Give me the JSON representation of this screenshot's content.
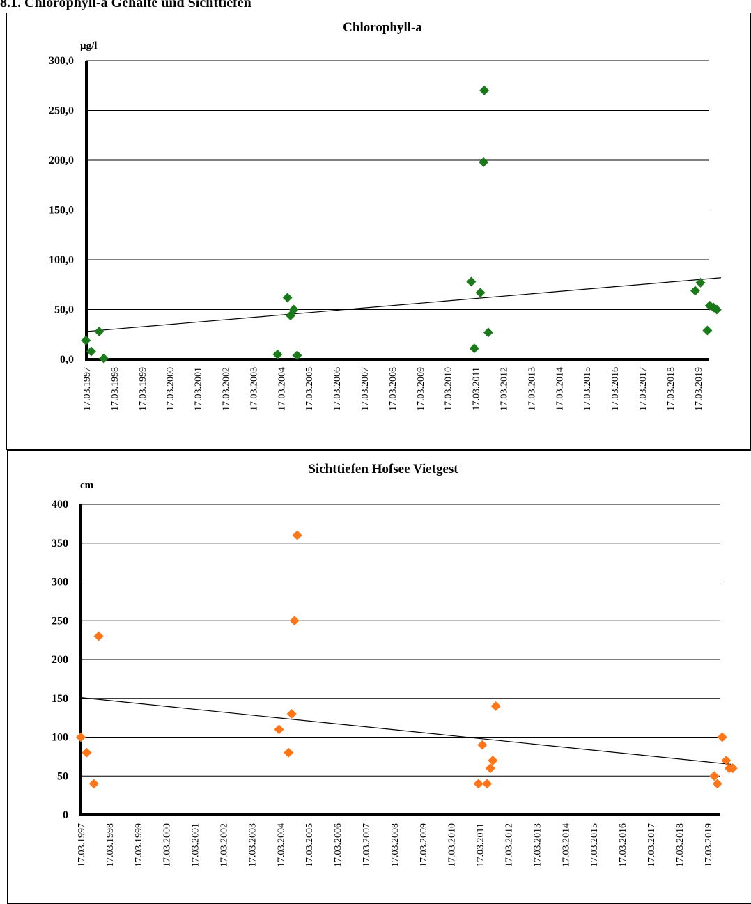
{
  "header": {
    "title": "8.1. Chlorophyll-a Gehalte und Sichttiefen"
  },
  "chart_data": [
    {
      "type": "scatter",
      "title": "Chlorophyll-a",
      "ylabel": "µg/l",
      "ylim": [
        0,
        300
      ],
      "yticks": [
        "0,0",
        "50,0",
        "100,0",
        "150,0",
        "200,0",
        "250,0",
        "300,0"
      ],
      "xticks": [
        "17.03.1997",
        "17.03.1998",
        "17.03.1999",
        "17.03.2000",
        "17.03.2001",
        "17.03.2002",
        "17.03.2003",
        "17.03.2004",
        "17.03.2005",
        "17.03.2006",
        "17.03.2007",
        "17.03.2008",
        "17.03.2009",
        "17.03.2010",
        "17.03.2011",
        "17.03.2012",
        "17.03.2013",
        "17.03.2014",
        "17.03.2015",
        "17.03.2016",
        "17.03.2017",
        "17.03.2018",
        "17.03.2019"
      ],
      "grid": true,
      "marker_color": "#1a7a1a",
      "trendline": {
        "start": [
          "1997-03-17",
          28
        ],
        "end": [
          "2020-01-15",
          82
        ]
      },
      "points": [
        [
          "1997-03-10",
          19
        ],
        [
          "1997-05-20",
          8
        ],
        [
          "1997-09-01",
          28
        ],
        [
          "1997-11-01",
          1
        ],
        [
          "2004-02-01",
          5
        ],
        [
          "2004-06-10",
          62
        ],
        [
          "2004-07-20",
          44
        ],
        [
          "2004-09-01",
          50
        ],
        [
          "2004-10-15",
          4
        ],
        [
          "2011-01-20",
          78
        ],
        [
          "2011-03-01",
          11
        ],
        [
          "2011-05-20",
          67
        ],
        [
          "2011-07-10",
          270
        ],
        [
          "2011-07-01",
          198
        ],
        [
          "2011-09-01",
          27
        ],
        [
          "2019-02-10",
          69
        ],
        [
          "2019-04-20",
          77
        ],
        [
          "2019-07-20",
          29
        ],
        [
          "2019-08-20",
          54
        ],
        [
          "2019-10-10",
          52
        ],
        [
          "2019-11-20",
          50
        ]
      ]
    },
    {
      "type": "scatter",
      "title": "Sichttiefen Hofsee Vietgest",
      "ylabel": "cm",
      "ylim": [
        0,
        400
      ],
      "yticks": [
        "0",
        "50",
        "100",
        "150",
        "200",
        "250",
        "300",
        "350",
        "400"
      ],
      "xticks": [
        "17.03.1997",
        "17.03.1998",
        "17.03.1999",
        "17.03.2000",
        "17.03.2001",
        "17.03.2002",
        "17.03.2003",
        "17.03.2004",
        "17.03.2005",
        "17.03.2006",
        "17.03.2007",
        "17.03.2008",
        "17.03.2009",
        "17.03.2010",
        "17.03.2011",
        "17.03.2012",
        "17.03.2013",
        "17.03.2014",
        "17.03.2015",
        "17.03.2016",
        "17.03.2017",
        "17.03.2018",
        "17.03.2019"
      ],
      "grid": true,
      "marker_color": "#ff7518",
      "trendline": {
        "start": [
          "1997-03-17",
          151
        ],
        "end": [
          "2020-01-15",
          65
        ]
      },
      "points": [
        [
          "1997-03-17",
          100
        ],
        [
          "1997-06-01",
          80
        ],
        [
          "1997-09-01",
          40
        ],
        [
          "1997-11-01",
          230
        ],
        [
          "2004-03-01",
          110
        ],
        [
          "2004-07-01",
          80
        ],
        [
          "2004-08-10",
          130
        ],
        [
          "2004-09-15",
          250
        ],
        [
          "2004-10-20",
          360
        ],
        [
          "2011-03-01",
          40
        ],
        [
          "2011-04-20",
          90
        ],
        [
          "2011-06-20",
          40
        ],
        [
          "2011-08-01",
          60
        ],
        [
          "2011-09-01",
          70
        ],
        [
          "2011-10-10",
          140
        ],
        [
          "2019-06-10",
          50
        ],
        [
          "2019-07-20",
          40
        ],
        [
          "2019-09-20",
          100
        ],
        [
          "2019-11-10",
          70
        ],
        [
          "2019-12-20",
          60
        ],
        [
          "2020-02-01",
          60
        ]
      ]
    }
  ]
}
